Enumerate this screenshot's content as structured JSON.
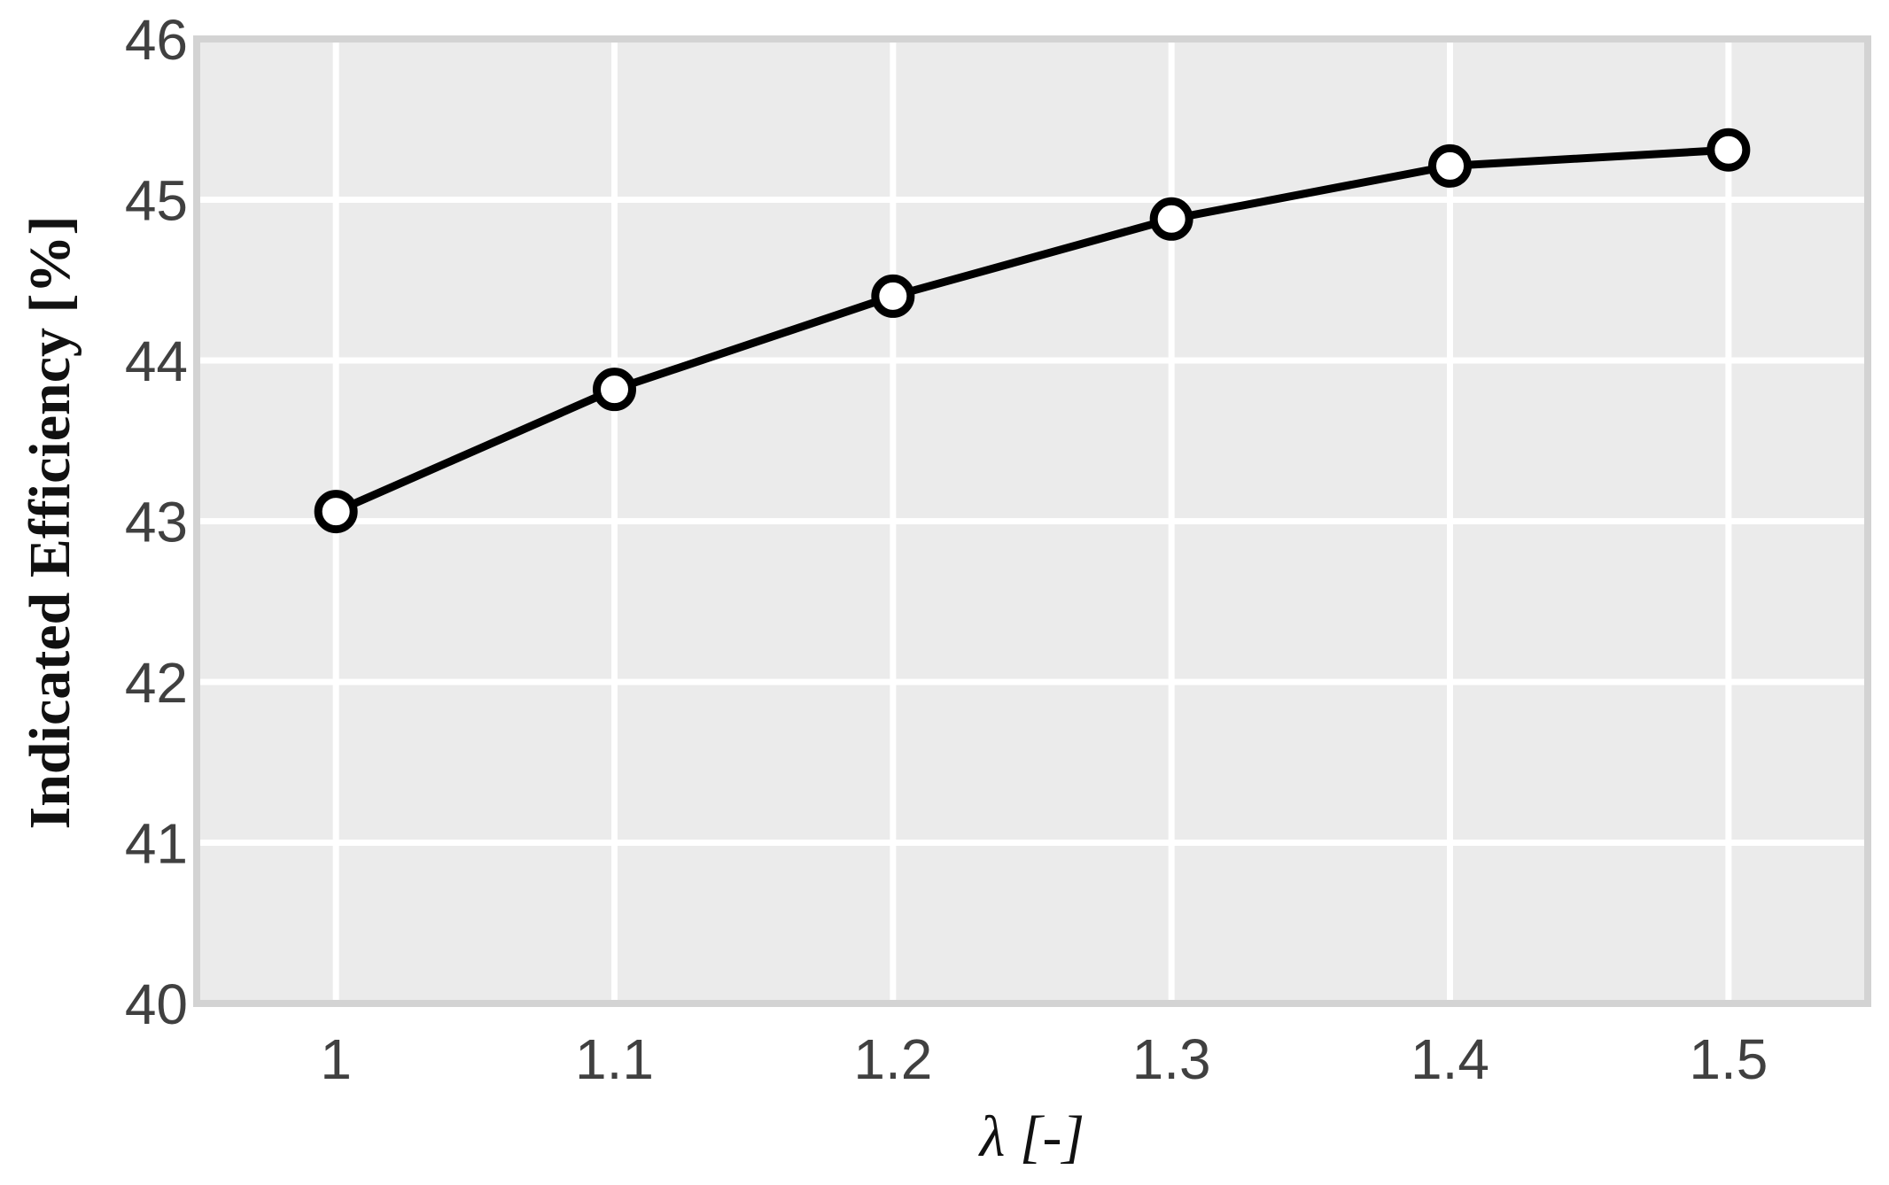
{
  "chart_data": {
    "type": "line",
    "x_label": "λ [-]",
    "y_label": "Indicated Efficiency [%]",
    "x": [
      1,
      1.1,
      1.2,
      1.3,
      1.4,
      1.5
    ],
    "series": [
      {
        "color": "#000000",
        "values": [
          43.06,
          43.82,
          44.4,
          44.88,
          45.21,
          45.31
        ]
      }
    ],
    "xlim": [
      0.95,
      1.55
    ],
    "ylim": [
      40,
      46
    ],
    "xticks": [
      1,
      1.1,
      1.2,
      1.3,
      1.4,
      1.5
    ],
    "yticks": [
      40,
      41,
      42,
      43,
      44,
      45,
      46
    ],
    "grid": true
  }
}
